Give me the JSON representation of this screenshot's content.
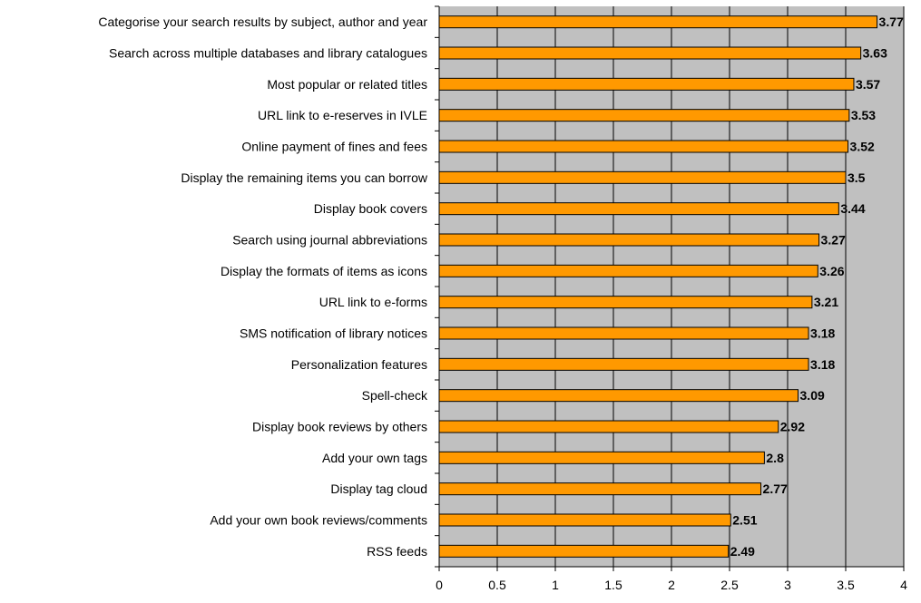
{
  "chart_data": {
    "type": "bar",
    "orientation": "horizontal",
    "title": "",
    "xlabel": "",
    "ylabel": "",
    "xlim": [
      0,
      4
    ],
    "x_ticks": [
      "0",
      "0.5",
      "1",
      "1.5",
      "2",
      "2.5",
      "3",
      "3.5",
      "4"
    ],
    "grid": "vertical",
    "legend": "none",
    "colors": {
      "bar_fill": "#ff9900",
      "bar_stroke": "#000000",
      "plot_background": "#c0c0c0",
      "gridline": "#000000"
    },
    "categories": [
      "Categorise your search results by subject, author and year",
      "Search across multiple databases and library catalogues",
      "Most popular or related titles",
      "URL link to e-reserves in IVLE",
      "Online payment of fines and fees",
      "Display the remaining items you can borrow",
      "Display book covers",
      "Search using journal abbreviations",
      "Display the formats of items as icons",
      "URL link to e-forms",
      "SMS notification of library notices",
      "Personalization features",
      "Spell-check",
      "Display book reviews by others",
      "Add your own tags",
      "Display tag cloud",
      "Add your own book reviews/comments",
      "RSS feeds"
    ],
    "values": [
      3.77,
      3.63,
      3.57,
      3.53,
      3.52,
      3.5,
      3.44,
      3.27,
      3.26,
      3.21,
      3.18,
      3.18,
      3.09,
      2.92,
      2.8,
      2.77,
      2.51,
      2.49
    ],
    "data_labels": [
      "3.77",
      "3.63",
      "3.57",
      "3.53",
      "3.52",
      "3.5",
      "3.44",
      "3.27",
      "3.26",
      "3.21",
      "3.18",
      "3.18",
      "3.09",
      "2.92",
      "2.8",
      "2.77",
      "2.51",
      "2.49"
    ]
  }
}
